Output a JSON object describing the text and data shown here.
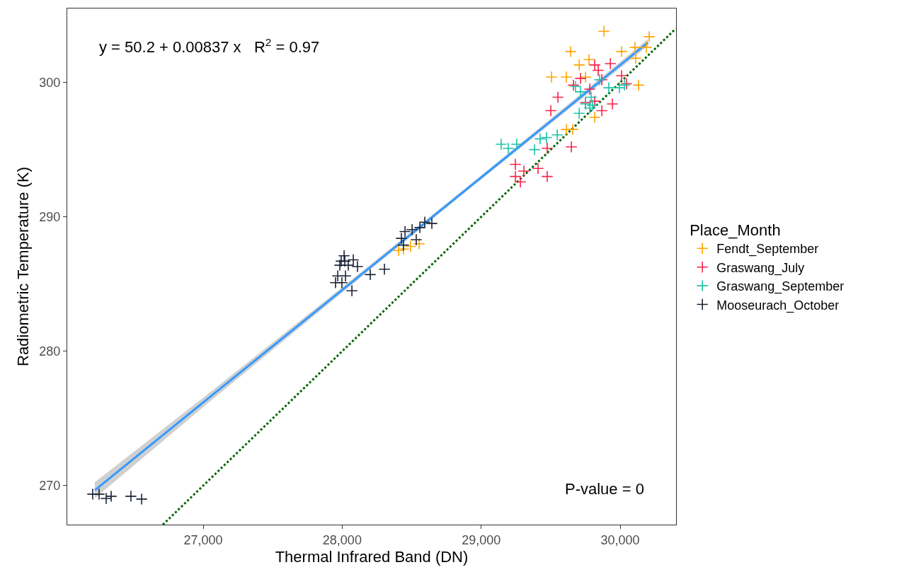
{
  "chart_data": {
    "type": "scatter",
    "xlabel": "Thermal Infrared Band (DN)",
    "ylabel": "Radiometric Temperature (K)",
    "legend_title": "Place_Month",
    "legend": "right",
    "grid": false,
    "marker": "cross",
    "xlim": [
      26022,
      30402
    ],
    "ylim": [
      267.1,
      305.5
    ],
    "xticks": [
      {
        "value": 27000,
        "label": "27,000"
      },
      {
        "value": 28000,
        "label": "28,000"
      },
      {
        "value": 29000,
        "label": "29,000"
      },
      {
        "value": 30000,
        "label": "30,000"
      }
    ],
    "yticks": [
      270,
      280,
      290,
      300
    ],
    "annotations": [
      "y = 50.2 + 0.00837 x   R$^{2}$ = 0.97",
      "P-value = 0"
    ],
    "series": [
      {
        "name": "Fendt_September",
        "color": "#ffa500",
        "x": [
          29643,
          30010,
          30107,
          30209,
          29705,
          29776,
          29506,
          29613,
          29751,
          30132,
          29817,
          29613,
          29659,
          30112,
          30188,
          29883,
          28441,
          28492,
          28554,
          28406
        ],
        "values": [
          302.3,
          302.3,
          302.6,
          303.4,
          301.3,
          301.7,
          300.4,
          300.4,
          300.4,
          299.8,
          297.4,
          296.5,
          296.5,
          301.8,
          302.6,
          303.8,
          287.6,
          287.8,
          288.0,
          287.5
        ]
      },
      {
        "name": "Graswang_July",
        "color": "#f8244a",
        "x": [
          29817,
          29929,
          29842,
          30010,
          29715,
          29664,
          29781,
          29868,
          29552,
          29751,
          29817,
          29944,
          30046,
          29501,
          29868,
          29246,
          29307,
          29246,
          29282,
          29409,
          29475,
          29649,
          29475
        ],
        "values": [
          301.3,
          301.4,
          300.9,
          300.5,
          300.3,
          299.8,
          299.5,
          300.2,
          298.9,
          298.5,
          298.6,
          298.4,
          299.9,
          297.9,
          297.9,
          293.9,
          293.4,
          293.0,
          292.6,
          293.6,
          293.0,
          295.2,
          295.1
        ]
      },
      {
        "name": "Graswang_September",
        "color": "#1fc3aa",
        "x": [
          29144,
          29195,
          29256,
          29384,
          29424,
          29470,
          29547,
          29705,
          29751,
          29802,
          29679,
          29715,
          29791,
          29852,
          29918,
          29995,
          30031,
          29781
        ],
        "values": [
          295.4,
          295.1,
          295.4,
          295.0,
          295.8,
          295.9,
          296.1,
          297.7,
          298.4,
          298.3,
          299.7,
          299.3,
          298.9,
          300.2,
          299.6,
          299.6,
          299.8,
          298.1
        ]
      },
      {
        "name": "Mooseurach_October",
        "color": "#1b2436",
        "x": [
          26205,
          26251,
          26302,
          26338,
          26480,
          26557,
          28014,
          27993,
          28019,
          28080,
          28110,
          27968,
          28024,
          27952,
          27998,
          28070,
          28202,
          28304,
          27983,
          28044,
          28452,
          28503,
          28594,
          28645,
          28441,
          28533,
          28426,
          28559
        ],
        "values": [
          269.37,
          269.37,
          269.05,
          269.21,
          269.21,
          269.0,
          287.1,
          286.7,
          286.7,
          286.8,
          286.3,
          285.6,
          285.6,
          285.1,
          285.1,
          284.5,
          285.7,
          286.1,
          286.4,
          286.4,
          288.9,
          289.05,
          289.6,
          289.5,
          287.9,
          288.3,
          288.4,
          289.2
        ]
      },
      {
        "type": "line",
        "color": "#3399ff",
        "x": [
          26220,
          27000,
          28000,
          29000,
          30200
        ],
        "values": [
          269.66,
          276.19,
          284.56,
          292.93,
          302.97
        ],
        "lower": [
          269.06,
          275.84,
          284.36,
          292.78,
          302.72
        ],
        "upper": [
          270.26,
          276.54,
          284.76,
          293.08,
          303.22
        ],
        "marker": "none"
      },
      {
        "type": "line",
        "color": "#006400",
        "line_style": "dotted",
        "marker": "none",
        "x": [
          26710,
          30400
        ],
        "values": [
          267.1,
          304.0
        ]
      }
    ]
  }
}
